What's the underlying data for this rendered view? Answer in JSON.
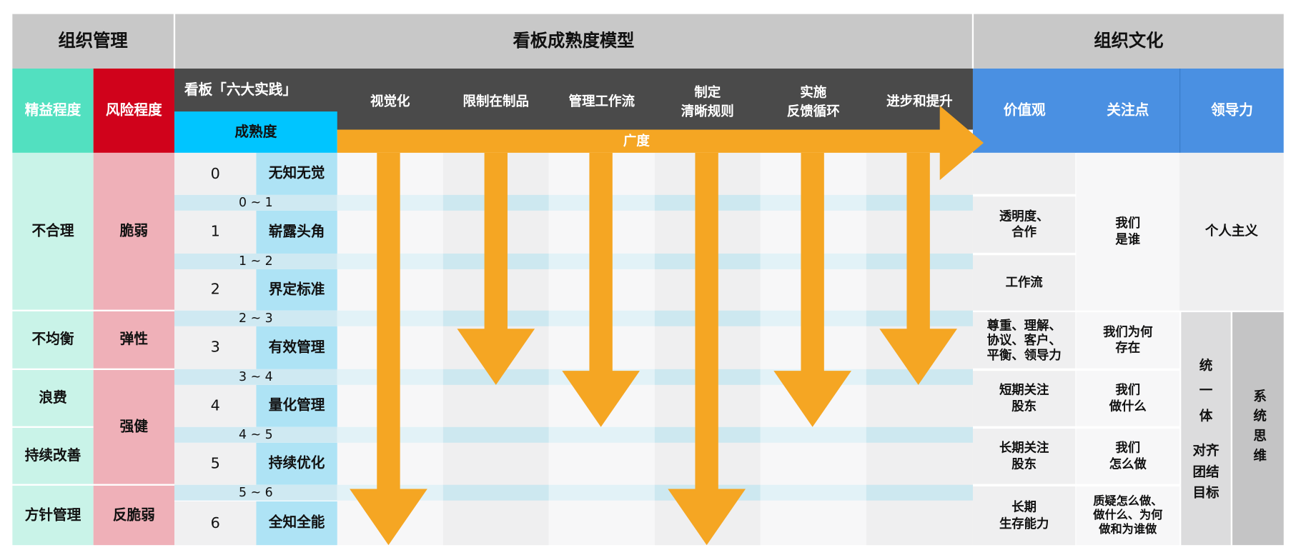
{
  "header": {
    "org_management": "组织管理",
    "maturity_model": "看板成熟度模型",
    "org_culture": "组织文化"
  },
  "subheader": {
    "lean": "精益程度",
    "risk": "风险程度",
    "practices": "看板「六大实践」",
    "maturity": "成熟度",
    "practice_cols": [
      "视觉化",
      "限制在制品",
      "管理工作流",
      "制定\n清晰规则",
      "实施\n反馈循环",
      "进步和提升"
    ],
    "breadth": "广度",
    "values": "价值观",
    "focus": "关注点",
    "leadership": "领导力"
  },
  "levels": [
    {
      "num": "0",
      "name": "无知无觉"
    },
    {
      "num": "1",
      "name": "崭露头角"
    },
    {
      "num": "2",
      "name": "界定标准"
    },
    {
      "num": "3",
      "name": "有效管理"
    },
    {
      "num": "4",
      "name": "量化管理"
    },
    {
      "num": "5",
      "name": "持续优化"
    },
    {
      "num": "6",
      "name": "全知全能"
    }
  ],
  "transitions": [
    "0 ~ 1",
    "1 ~ 2",
    "2 ~ 3",
    "3 ~ 4",
    "4 ~ 5",
    "5 ~ 6"
  ],
  "lean": [
    "不合理",
    "不均衡",
    "浪费",
    "持续改善",
    "方针管理"
  ],
  "risk": [
    "脆弱",
    "弹性",
    "强健",
    "反脆弱"
  ],
  "values": [
    "",
    "透明度、\n合作",
    "工作流",
    "尊重、理解、\n协议、客户、\n平衡、领导力",
    "短期关注\n股东",
    "长期关注\n股东",
    "长期\n生存能力"
  ],
  "focus": [
    "我们\n是谁",
    "我们为何\n存在",
    "我们\n做什么",
    "我们\n怎么做",
    "质疑怎么做、\n做什么、为何\n做和为谁做"
  ],
  "leadership": {
    "individual": "个人主义",
    "unity": "统\n一\n体",
    "align": "对齐\n团结\n目标",
    "systems": "系统思维"
  },
  "colors": {
    "lean_header": "#52e0c0",
    "risk_header": "#d0021b",
    "lean_cell": "#c9f3e8",
    "risk_cell": "#efb0b8",
    "header_gray": "#c8c8c8",
    "dark": "#4a4a4a",
    "maturity": "#00c5ff",
    "level_name": "#aee3f5",
    "culture_blue": "#4a90e2",
    "arrow": "#f5a623"
  }
}
